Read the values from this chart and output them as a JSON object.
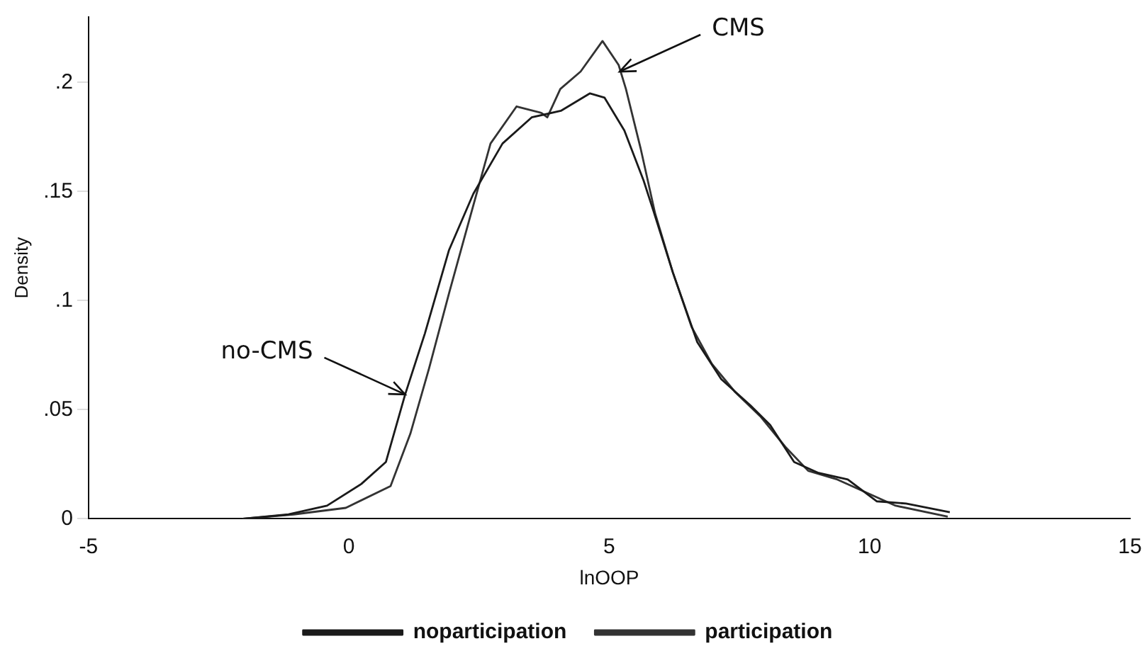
{
  "chart_data": {
    "type": "line",
    "xlabel": "lnOOP",
    "ylabel": "Density",
    "xlim": [
      -5,
      15
    ],
    "xticks": [
      -5,
      0,
      5,
      10,
      15
    ],
    "ylim": [
      0,
      0.23
    ],
    "yticks": [
      {
        "value": 0,
        "label": "0"
      },
      {
        "value": 0.05,
        "label": ".05"
      },
      {
        "value": 0.1,
        "label": ".1"
      },
      {
        "value": 0.15,
        "label": ".15"
      },
      {
        "value": 0.2,
        "label": ".2"
      }
    ],
    "grid": false,
    "legend": "bottom",
    "marker": "none",
    "line_style": "solid",
    "annotations": [
      {
        "text": "CMS",
        "x": 5.2,
        "y": 0.205
      },
      {
        "text": "no-CMS",
        "x": 1.08,
        "y": 0.057
      }
    ],
    "series": [
      {
        "name": "noparticipation",
        "color": "#1a1a1a",
        "x": [
          -2.04,
          -1.16,
          -0.42,
          0.24,
          0.71,
          1.08,
          1.46,
          1.92,
          2.39,
          2.95,
          3.51,
          4.07,
          4.63,
          4.91,
          5.29,
          5.66,
          5.85,
          6.22,
          6.69,
          7.15,
          7.71,
          8.09,
          8.55,
          9.02,
          9.58,
          10.14,
          10.7,
          11.54
        ],
        "values": [
          0.0,
          0.002,
          0.006,
          0.016,
          0.026,
          0.057,
          0.085,
          0.123,
          0.149,
          0.172,
          0.184,
          0.187,
          0.195,
          0.193,
          0.178,
          0.155,
          0.141,
          0.113,
          0.081,
          0.064,
          0.052,
          0.043,
          0.026,
          0.021,
          0.018,
          0.008,
          0.007,
          0.003
        ]
      },
      {
        "name": "participation",
        "color": "#333333",
        "x": [
          -2.04,
          -1.06,
          -0.06,
          0.8,
          1.18,
          1.54,
          1.93,
          2.3,
          2.72,
          3.22,
          3.7,
          3.81,
          4.06,
          4.45,
          4.87,
          5.18,
          5.32,
          5.6,
          5.88,
          6.22,
          6.58,
          6.97,
          7.42,
          7.9,
          8.38,
          8.82,
          9.38,
          9.94,
          10.5,
          11.5
        ],
        "values": [
          0.0,
          0.002,
          0.005,
          0.015,
          0.039,
          0.069,
          0.104,
          0.136,
          0.172,
          0.189,
          0.186,
          0.184,
          0.197,
          0.205,
          0.219,
          0.208,
          0.197,
          0.17,
          0.14,
          0.113,
          0.088,
          0.071,
          0.058,
          0.047,
          0.033,
          0.022,
          0.018,
          0.012,
          0.006,
          0.001
        ]
      }
    ]
  }
}
